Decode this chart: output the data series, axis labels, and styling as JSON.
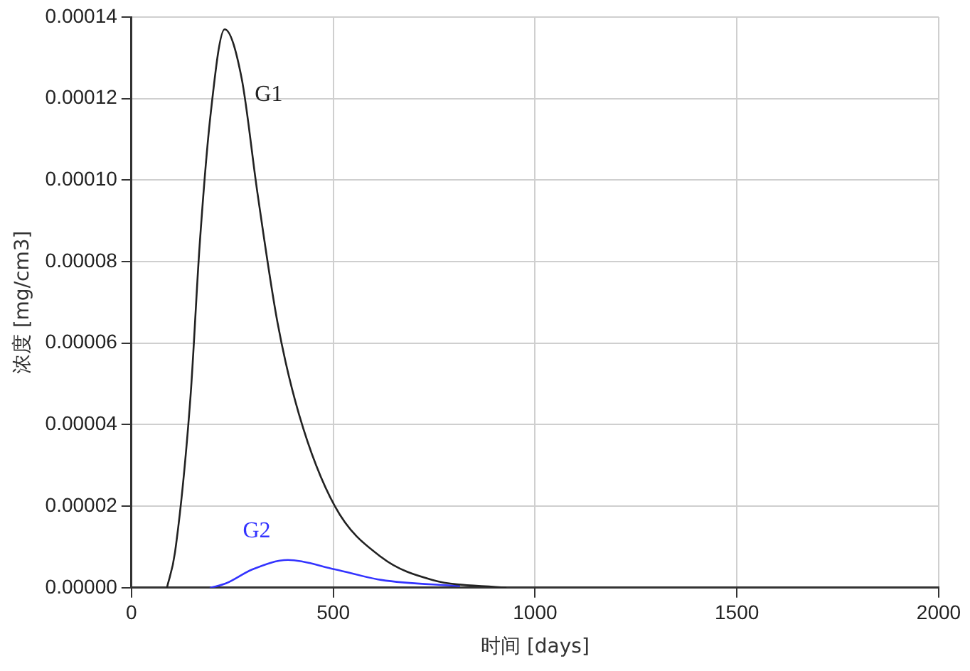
{
  "chart_data": {
    "type": "line",
    "xlabel": "时间 [days]",
    "ylabel": "浓度 [mg/cm3]",
    "xlim": [
      0,
      2000
    ],
    "xticks": [
      0,
      500,
      1000,
      1500,
      2000
    ],
    "ylim": [
      0,
      0.00014
    ],
    "yticks": [
      {
        "value": 0,
        "label": "0.00000"
      },
      {
        "value": 2e-05,
        "label": "0.00002"
      },
      {
        "value": 4e-05,
        "label": "0.00004"
      },
      {
        "value": 6e-05,
        "label": "0.00006"
      },
      {
        "value": 8e-05,
        "label": "0.00008"
      },
      {
        "value": 0.0001,
        "label": "0.00010"
      },
      {
        "value": 0.00012,
        "label": "0.00012"
      },
      {
        "value": 0.00014,
        "label": "0.00014"
      }
    ],
    "grid": true,
    "legend": false,
    "marker": "none",
    "line_style": "solid",
    "series": [
      {
        "name": "G1",
        "color": "#222222",
        "x": [
          88,
          108,
          146,
          169,
          196,
          231,
          273,
          312,
          362,
          415,
          504,
          619,
          746,
          927
        ],
        "values": [
          0,
          8.7e-06,
          4.64e-05,
          8.4e-05,
          0.000116,
          0.000137,
          0.000125,
          9.7e-05,
          6.5e-05,
          4.26e-05,
          2e-05,
          7.5e-06,
          1.9e-06,
          0
        ]
      },
      {
        "name": "G2",
        "color": "#3333ff",
        "x": [
          196,
          235,
          300,
          388,
          504,
          619,
          812
        ],
        "values": [
          0,
          1.1e-06,
          4.5e-06,
          6.8e-06,
          4.5e-06,
          1.9e-06,
          4e-07
        ]
      }
    ]
  }
}
